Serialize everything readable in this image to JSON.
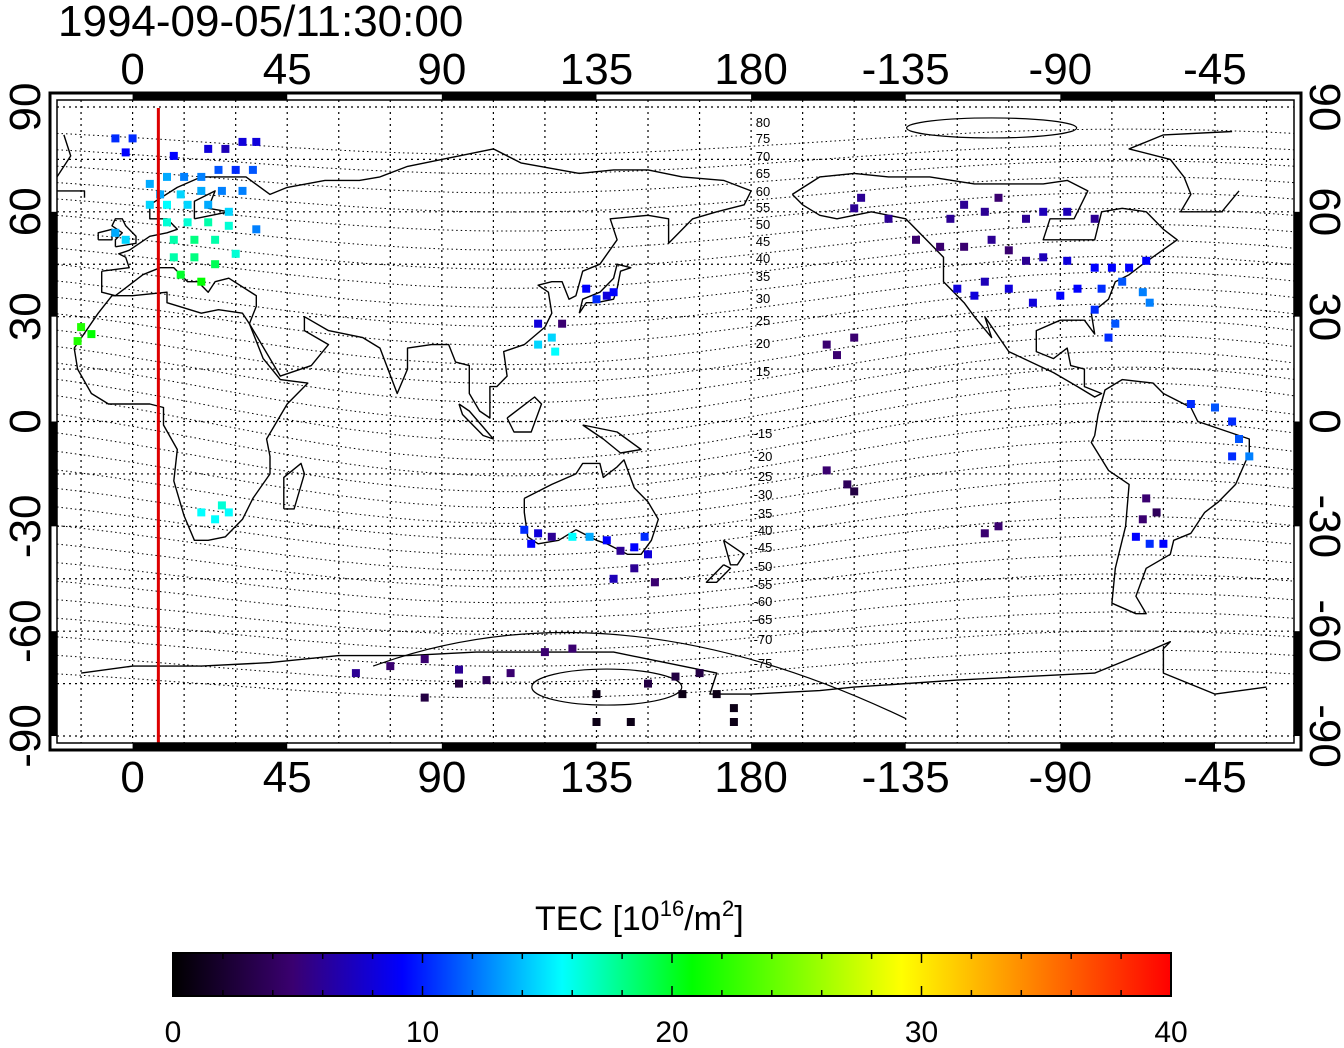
{
  "title": "1994-09-05/11:30:00",
  "x_ticks": [
    "0",
    "45",
    "90",
    "135",
    "180",
    "-135",
    "-90",
    "-45"
  ],
  "y_ticks": [
    "90",
    "60",
    "30",
    "0",
    "-30",
    "-60",
    "-90"
  ],
  "mlat_labels": [
    "80",
    "75",
    "70",
    "65",
    "60",
    "55",
    "50",
    "45",
    "40",
    "35",
    "30",
    "25",
    "20",
    "15",
    "-15",
    "-20",
    "-25",
    "-30",
    "-35",
    "-40",
    "-45",
    "-50",
    "-55",
    "-60",
    "-65",
    "-70",
    "-75"
  ],
  "colorbar": {
    "title_prefix": "TEC  [10",
    "title_sup1": "16",
    "title_mid": "/m",
    "title_sup2": "2",
    "title_suffix": "]",
    "ticks": [
      "0",
      "10",
      "20",
      "30",
      "40"
    ],
    "stops": [
      "#000000",
      "#3a0070",
      "#0000ff",
      "#00ffff",
      "#00ff00",
      "#ffff00",
      "#ff0000"
    ]
  },
  "sun_line": {
    "longitude": 7.5,
    "color": "#dd0000"
  }
}
